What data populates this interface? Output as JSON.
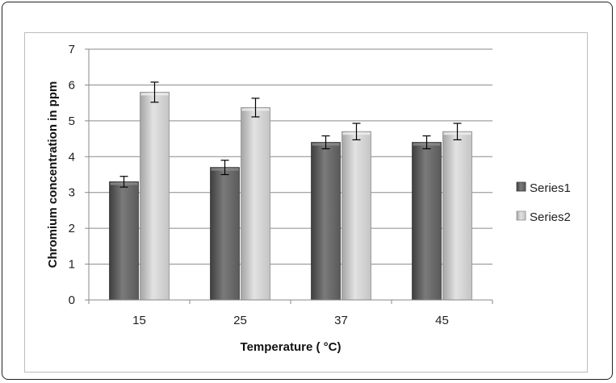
{
  "chart_data": {
    "type": "bar",
    "categories": [
      "15",
      "25",
      "37",
      "45"
    ],
    "series": [
      {
        "name": "Series1",
        "values": [
          3.3,
          3.7,
          4.4,
          4.4
        ],
        "errors": [
          0.15,
          0.2,
          0.18,
          0.18
        ],
        "color": "#5a5a5a"
      },
      {
        "name": "Series2",
        "values": [
          5.8,
          5.37,
          4.7,
          4.7
        ],
        "errors": [
          0.28,
          0.26,
          0.23,
          0.23
        ],
        "color": "#c4c4c4"
      }
    ],
    "xlabel": "Temperature ( °C)",
    "ylabel": "Chromium concentration in ppm",
    "ylim": [
      0,
      7
    ],
    "yticks": [
      "0",
      "1",
      "2",
      "3",
      "4",
      "5",
      "6",
      "7"
    ],
    "grid": true,
    "legend": "right"
  }
}
